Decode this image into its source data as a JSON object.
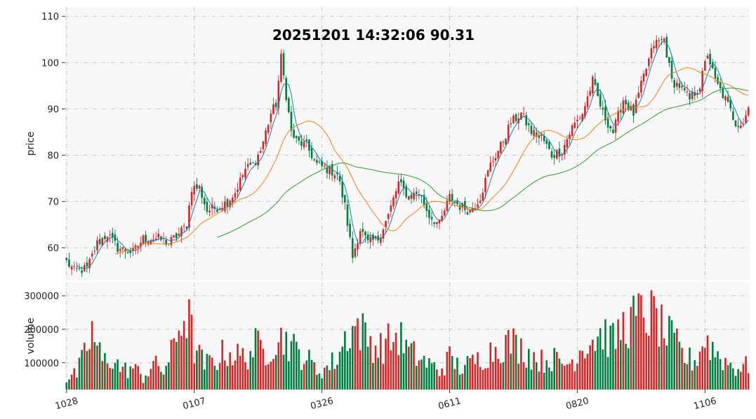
{
  "chart_data": {
    "type": "candlestick",
    "title": "20251201 14:32:06   90.31",
    "price_panel": {
      "ylabel": "price",
      "ylim": [
        53,
        112
      ],
      "yticks": [
        60,
        70,
        80,
        90,
        100,
        110
      ],
      "grid": true
    },
    "volume_panel": {
      "ylabel": "volume",
      "ylim": [
        20000,
        340000
      ],
      "yticks": [
        100000,
        200000,
        300000
      ],
      "grid": true
    },
    "xticks": [
      {
        "label": "1028",
        "index": 0
      },
      {
        "label": "0107",
        "index": 50
      },
      {
        "label": "0326",
        "index": 100
      },
      {
        "label": "0611",
        "index": 150
      },
      {
        "label": "0820",
        "index": 200
      },
      {
        "label": "1106",
        "index": 250
      }
    ],
    "n_bars": 268,
    "close_keypoints": [
      [
        0,
        57
      ],
      [
        3,
        55
      ],
      [
        8,
        55.5
      ],
      [
        12,
        61
      ],
      [
        16,
        63
      ],
      [
        20,
        60
      ],
      [
        26,
        59
      ],
      [
        30,
        62
      ],
      [
        36,
        62
      ],
      [
        40,
        61
      ],
      [
        44,
        63
      ],
      [
        47,
        65
      ],
      [
        49,
        73
      ],
      [
        52,
        73
      ],
      [
        55,
        68
      ],
      [
        60,
        69
      ],
      [
        63,
        70
      ],
      [
        66,
        72
      ],
      [
        70,
        77
      ],
      [
        73,
        78
      ],
      [
        76,
        81
      ],
      [
        80,
        89
      ],
      [
        82,
        91
      ],
      [
        84,
        101
      ],
      [
        86,
        93
      ],
      [
        88,
        85
      ],
      [
        90,
        83
      ],
      [
        94,
        82
      ],
      [
        98,
        78
      ],
      [
        102,
        77
      ],
      [
        106,
        76
      ],
      [
        109,
        69
      ],
      [
        112,
        58
      ],
      [
        115,
        64
      ],
      [
        118,
        61
      ],
      [
        122,
        62
      ],
      [
        126,
        67
      ],
      [
        130,
        74
      ],
      [
        134,
        71
      ],
      [
        138,
        72
      ],
      [
        142,
        67
      ],
      [
        146,
        65
      ],
      [
        150,
        71
      ],
      [
        154,
        69
      ],
      [
        158,
        68
      ],
      [
        162,
        71
      ],
      [
        166,
        78
      ],
      [
        170,
        82
      ],
      [
        174,
        87
      ],
      [
        178,
        89
      ],
      [
        182,
        85
      ],
      [
        186,
        84
      ],
      [
        190,
        80
      ],
      [
        194,
        81
      ],
      [
        198,
        86
      ],
      [
        202,
        89
      ],
      [
        206,
        96
      ],
      [
        210,
        89
      ],
      [
        214,
        85
      ],
      [
        218,
        92
      ],
      [
        222,
        89
      ],
      [
        226,
        97
      ],
      [
        230,
        104
      ],
      [
        234,
        105
      ],
      [
        237,
        96
      ],
      [
        240,
        95
      ],
      [
        244,
        92
      ],
      [
        248,
        95
      ],
      [
        251,
        102
      ],
      [
        254,
        96
      ],
      [
        258,
        92
      ],
      [
        262,
        87
      ],
      [
        265,
        87
      ],
      [
        267,
        90.31
      ]
    ],
    "volume_keypoints": [
      [
        0,
        55000
      ],
      [
        4,
        70000
      ],
      [
        8,
        150000
      ],
      [
        10,
        200000
      ],
      [
        14,
        110000
      ],
      [
        18,
        120000
      ],
      [
        22,
        80000
      ],
      [
        26,
        90000
      ],
      [
        30,
        60000
      ],
      [
        34,
        100000
      ],
      [
        38,
        80000
      ],
      [
        42,
        150000
      ],
      [
        45,
        250000
      ],
      [
        48,
        240000
      ],
      [
        50,
        150000
      ],
      [
        54,
        100000
      ],
      [
        58,
        110000
      ],
      [
        62,
        140000
      ],
      [
        66,
        130000
      ],
      [
        70,
        120000
      ],
      [
        74,
        160000
      ],
      [
        78,
        140000
      ],
      [
        82,
        180000
      ],
      [
        86,
        180000
      ],
      [
        90,
        140000
      ],
      [
        94,
        120000
      ],
      [
        98,
        80000
      ],
      [
        102,
        90000
      ],
      [
        106,
        120000
      ],
      [
        110,
        200000
      ],
      [
        114,
        220000
      ],
      [
        118,
        180000
      ],
      [
        122,
        150000
      ],
      [
        126,
        170000
      ],
      [
        130,
        190000
      ],
      [
        134,
        140000
      ],
      [
        138,
        120000
      ],
      [
        142,
        100000
      ],
      [
        146,
        80000
      ],
      [
        150,
        120000
      ],
      [
        154,
        90000
      ],
      [
        158,
        100000
      ],
      [
        162,
        120000
      ],
      [
        166,
        140000
      ],
      [
        170,
        160000
      ],
      [
        174,
        170000
      ],
      [
        178,
        150000
      ],
      [
        182,
        130000
      ],
      [
        186,
        110000
      ],
      [
        190,
        120000
      ],
      [
        194,
        100000
      ],
      [
        198,
        110000
      ],
      [
        202,
        160000
      ],
      [
        206,
        180000
      ],
      [
        210,
        200000
      ],
      [
        214,
        170000
      ],
      [
        218,
        220000
      ],
      [
        222,
        240000
      ],
      [
        226,
        260000
      ],
      [
        230,
        250000
      ],
      [
        234,
        200000
      ],
      [
        238,
        170000
      ],
      [
        242,
        120000
      ],
      [
        246,
        110000
      ],
      [
        250,
        180000
      ],
      [
        254,
        140000
      ],
      [
        258,
        110000
      ],
      [
        262,
        90000
      ],
      [
        267,
        95000
      ]
    ],
    "moving_averages": [
      {
        "name": "MA5",
        "period": 5,
        "color": "#1f77b4"
      },
      {
        "name": "MA20",
        "period": 20,
        "color": "#ff7f0e"
      },
      {
        "name": "MA60",
        "period": 60,
        "color": "#2ca02c"
      }
    ],
    "colors": {
      "up": "#d62728",
      "down": "#008040",
      "panel_bg": "#f7f7f7"
    }
  }
}
